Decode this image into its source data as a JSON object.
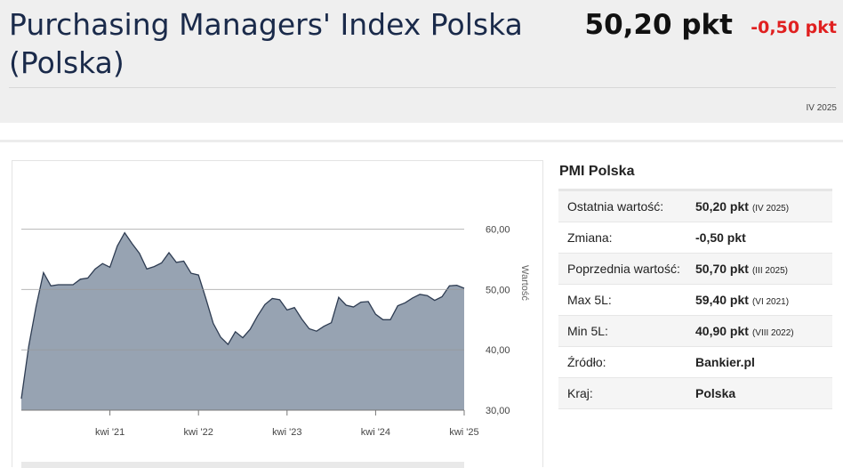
{
  "header": {
    "title": "Purchasing Managers' Index Polska (Polska)",
    "value": "50,20 pkt",
    "change": "-0,50 pkt",
    "period": "IV 2025"
  },
  "colors": {
    "change": "#e02020",
    "title": "#1a2a4a",
    "area_fill": "#97a3b2",
    "area_stroke": "#2e3c52"
  },
  "panel": {
    "title": "PMI Polska",
    "rows": [
      {
        "label": "Ostatnia wartość:",
        "value": "50,20 pkt",
        "note": "(IV 2025)"
      },
      {
        "label": "Zmiana:",
        "value": "-0,50 pkt",
        "note": ""
      },
      {
        "label": "Poprzednia wartość:",
        "value": "50,70 pkt",
        "note": "(III 2025)"
      },
      {
        "label": "Max 5L:",
        "value": "59,40 pkt",
        "note": "(VI 2021)"
      },
      {
        "label": "Min 5L:",
        "value": "40,90 pkt",
        "note": "(VIII 2022)"
      },
      {
        "label": "Źródło:",
        "value": "Bankier.pl",
        "note": ""
      },
      {
        "label": "Kraj:",
        "value": "Polska",
        "note": ""
      }
    ]
  },
  "chart_data": {
    "type": "area",
    "ylabel": "Wartość",
    "ylim": [
      30,
      62
    ],
    "y_ticks": [
      "30,00",
      "40,00",
      "50,00",
      "60,00"
    ],
    "y_tick_values": [
      30,
      40,
      50,
      60
    ],
    "x_ticks": [
      "kwi '21",
      "kwi '22",
      "kwi '23",
      "kwi '24",
      "kwi '25"
    ],
    "x_tick_dates": [
      "2021-04",
      "2022-04",
      "2023-04",
      "2024-04",
      "2025-04"
    ],
    "x_range": [
      "2020-04",
      "2025-04"
    ],
    "grid": true,
    "series": [
      {
        "x": [
          "2020-04",
          "2020-05",
          "2020-06",
          "2020-07",
          "2020-08",
          "2020-09",
          "2020-10",
          "2020-11",
          "2020-12",
          "2021-01",
          "2021-02",
          "2021-03",
          "2021-04",
          "2021-05",
          "2021-06",
          "2021-07",
          "2021-08",
          "2021-09",
          "2021-10",
          "2021-11",
          "2021-12",
          "2022-01",
          "2022-02",
          "2022-03",
          "2022-04",
          "2022-05",
          "2022-06",
          "2022-07",
          "2022-08",
          "2022-09",
          "2022-10",
          "2022-11",
          "2022-12",
          "2023-01",
          "2023-02",
          "2023-03",
          "2023-04",
          "2023-05",
          "2023-06",
          "2023-07",
          "2023-08",
          "2023-09",
          "2023-10",
          "2023-11",
          "2023-12",
          "2024-01",
          "2024-02",
          "2024-03",
          "2024-04",
          "2024-05",
          "2024-06",
          "2024-07",
          "2024-08",
          "2024-09",
          "2024-10",
          "2024-11",
          "2024-12",
          "2025-01",
          "2025-02",
          "2025-03",
          "2025-04"
        ],
        "values": [
          31.9,
          40.6,
          47.2,
          52.8,
          50.6,
          50.8,
          50.8,
          50.8,
          51.7,
          51.9,
          53.4,
          54.3,
          53.7,
          57.2,
          59.4,
          57.6,
          56.0,
          53.4,
          53.8,
          54.4,
          56.1,
          54.5,
          54.7,
          52.7,
          52.4,
          48.5,
          44.4,
          42.1,
          40.9,
          43.0,
          42.0,
          43.4,
          45.6,
          47.5,
          48.5,
          48.3,
          46.6,
          47.0,
          45.1,
          43.5,
          43.1,
          43.9,
          44.5,
          48.7,
          47.4,
          47.1,
          47.9,
          48.0,
          45.9,
          45.0,
          45.0,
          47.3,
          47.8,
          48.6,
          49.2,
          49.0,
          48.2,
          48.8,
          50.6,
          50.7,
          50.2
        ]
      }
    ]
  }
}
